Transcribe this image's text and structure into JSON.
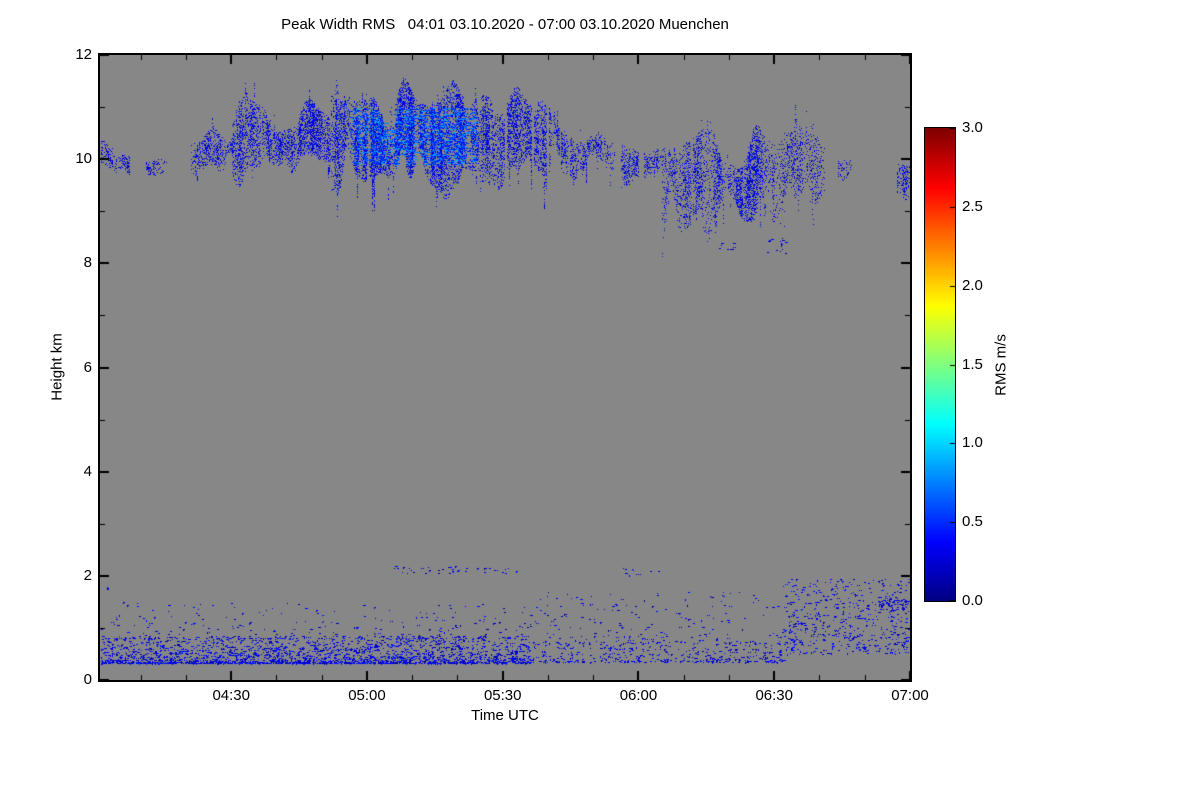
{
  "chart_data": {
    "type": "heatmap",
    "title": "Peak Width RMS   04:01 03.10.2020 - 07:00 03.10.2020 Muenchen",
    "location": "Muenchen",
    "time_start": "04:01 03.10.2020",
    "time_end": "07:00 03.10.2020",
    "xlabel": "Time UTC",
    "ylabel": "Height km",
    "x_range_minutes": [
      241,
      420
    ],
    "x_ticks": [
      {
        "label": "04:30",
        "minute": 270
      },
      {
        "label": "05:00",
        "minute": 300
      },
      {
        "label": "05:30",
        "minute": 330
      },
      {
        "label": "06:00",
        "minute": 360
      },
      {
        "label": "06:30",
        "minute": 390
      },
      {
        "label": "07:00",
        "minute": 420
      }
    ],
    "ylim": [
      0,
      12
    ],
    "y_ticks": [
      0,
      2,
      4,
      6,
      8,
      10,
      12
    ],
    "y_tick_labels": [
      "0",
      "2",
      "4",
      "6",
      "8",
      "10",
      "12"
    ],
    "grid": false,
    "background_color": "#878787",
    "colorbar": {
      "label": "RMS m/s",
      "min": 0.0,
      "max": 3.0,
      "ticks": [
        "0.0",
        "0.5",
        "1.0",
        "1.5",
        "2.0",
        "2.5",
        "3.0"
      ],
      "tick_values": [
        0,
        0.5,
        1,
        1.5,
        2,
        2.5,
        3
      ],
      "colormap": "jet",
      "position": "right"
    },
    "features": [
      {
        "name": "cirrus-cloud-layer",
        "render": "cloud",
        "description": "Broken high cloud layer between about 8.2 and 11.5 km from 04:01 to 07:00; RMS mostly 0.1-0.55 m/s (dark to mid blue) with a brighter core (~0.45-0.9 m/s, light blue/cyan) near 04:55-05:25 at 9.9-11.0 km",
        "segments": [
          {
            "t": [
              241,
              244
            ],
            "h_center": 10.1,
            "h_half": 0.25,
            "density": 0.55,
            "rms": [
              0.12,
              0.45
            ]
          },
          {
            "t": [
              244,
              248
            ],
            "h_center": 9.9,
            "h_half": 0.22,
            "density": 0.5,
            "rms": [
              0.12,
              0.45
            ]
          },
          {
            "t": [
              250,
              256
            ],
            "h_center": 9.85,
            "h_half": 0.18,
            "density": 0.45,
            "rms": [
              0.12,
              0.4
            ]
          },
          {
            "t": [
              261,
              272
            ],
            "h_center": 10.2,
            "h_half": 0.45,
            "density": 0.55,
            "rms": [
              0.12,
              0.5
            ]
          },
          {
            "t": [
              270,
              294
            ],
            "h_center": 10.4,
            "h_half": 0.75,
            "density": 0.65,
            "rms": [
              0.12,
              0.5
            ]
          },
          {
            "t": [
              292,
              327
            ],
            "h_center": 10.4,
            "h_half": 1.0,
            "density": 0.8,
            "rms": [
              0.12,
              0.55
            ],
            "core": {
              "t": [
                296,
                324
              ],
              "h": [
                9.9,
                11.0
              ],
              "rms": [
                0.45,
                0.9
              ]
            }
          },
          {
            "t": [
              325,
              344
            ],
            "h_center": 10.4,
            "h_half": 0.8,
            "density": 0.6,
            "rms": [
              0.12,
              0.5
            ]
          },
          {
            "t": [
              343,
              355
            ],
            "h_center": 10.2,
            "h_half": 0.6,
            "density": 0.45,
            "rms": [
              0.12,
              0.5
            ]
          },
          {
            "t": [
              356,
              366
            ],
            "h_center": 10.0,
            "h_half": 0.45,
            "density": 0.55,
            "rms": [
              0.12,
              0.5
            ]
          },
          {
            "t": [
              365,
              390
            ],
            "h_center": 9.6,
            "h_half": 0.95,
            "density": 0.6,
            "rms": [
              0.12,
              0.5
            ]
          },
          {
            "t": [
              389,
              401
            ],
            "h_center": 9.7,
            "h_half": 0.85,
            "density": 0.3,
            "rms": [
              0.12,
              0.45
            ]
          },
          {
            "t": [
              404,
              407
            ],
            "h_center": 9.8,
            "h_half": 0.2,
            "density": 0.35,
            "rms": [
              0.12,
              0.4
            ]
          },
          {
            "t": [
              417,
              420
            ],
            "h_center": 9.55,
            "h_half": 0.3,
            "density": 0.5,
            "rms": [
              0.12,
              0.45
            ]
          }
        ]
      },
      {
        "name": "boundary-layer-echoes",
        "render": "speckle",
        "description": "Speckled low-level echoes: dense dotted line near 0.4-0.6 km before ~05:35, sparser after; scattered dots up to ~1.7 km; short row at ~2.1 km near 05:05-05:30; speckle rising to ~1.9 km after 06:30; a few isolated dots near 8.3 km around 06:20-06:35",
        "segments": [
          {
            "t": [
              241,
              336
            ],
            "h": [
              0.33,
              0.85
            ],
            "count": 2400,
            "rms": [
              0.1,
              0.5
            ],
            "bias": 2.4
          },
          {
            "t": [
              241,
              336
            ],
            "h": [
              0.8,
              1.5
            ],
            "count": 230,
            "rms": [
              0.1,
              0.45
            ],
            "bias": 1.6
          },
          {
            "t": [
              336,
              392
            ],
            "h": [
              0.35,
              0.75
            ],
            "count": 420,
            "rms": [
              0.1,
              0.45
            ],
            "bias": 1.8
          },
          {
            "t": [
              336,
              396
            ],
            "h": [
              0.7,
              1.7
            ],
            "count": 200,
            "rms": [
              0.1,
              0.45
            ],
            "bias": 1.4
          },
          {
            "t": [
              392,
              420
            ],
            "h": [
              0.5,
              1.95
            ],
            "count": 520,
            "rms": [
              0.1,
              0.5
            ],
            "bias": 1.2
          },
          {
            "t": [
              413,
              420
            ],
            "h": [
              1.35,
              1.55
            ],
            "count": 60,
            "rms": [
              0.1,
              0.45
            ],
            "bias": 1
          },
          {
            "t": [
              305,
              333
            ],
            "h": [
              2.05,
              2.18
            ],
            "count": 45,
            "rms": [
              0.1,
              0.4
            ],
            "bias": 1
          },
          {
            "t": [
              356,
              368
            ],
            "h": [
              2.0,
              2.15
            ],
            "count": 10,
            "rms": [
              0.1,
              0.4
            ],
            "bias": 1
          },
          {
            "t": [
              242,
              243
            ],
            "h": [
              1.72,
              1.8
            ],
            "count": 3,
            "rms": [
              0.1,
              0.4
            ],
            "bias": 1
          },
          {
            "t": [
              377,
              381
            ],
            "h": [
              8.25,
              8.45
            ],
            "count": 8,
            "rms": [
              0.1,
              0.4
            ],
            "bias": 1
          },
          {
            "t": [
              388,
              393
            ],
            "h": [
              8.2,
              8.5
            ],
            "count": 18,
            "rms": [
              0.1,
              0.4
            ],
            "bias": 1
          }
        ]
      }
    ]
  }
}
